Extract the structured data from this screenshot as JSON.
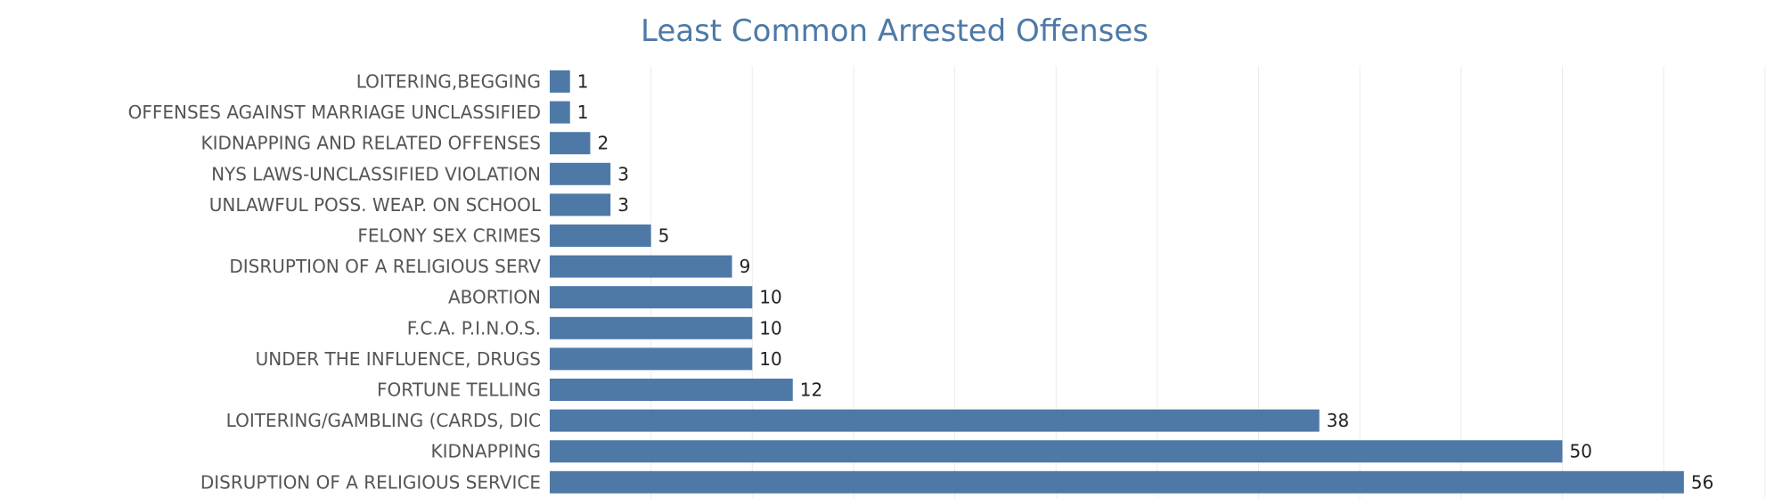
{
  "chart_data": {
    "type": "bar",
    "orientation": "horizontal",
    "title": "Least Common Arrested Offenses",
    "xlabel": "",
    "ylabel": "",
    "xlim": [
      0,
      60
    ],
    "grid": true,
    "bar_color": "#4e79a7",
    "categories": [
      "LOITERING,BEGGING",
      "OFFENSES AGAINST MARRIAGE UNCLASSIFIED",
      "KIDNAPPING AND RELATED OFFENSES",
      "NYS LAWS-UNCLASSIFIED VIOLATION",
      "UNLAWFUL POSS. WEAP. ON SCHOOL",
      "FELONY SEX CRIMES",
      "DISRUPTION OF A RELIGIOUS SERV",
      "ABORTION",
      "F.C.A. P.I.N.O.S.",
      "UNDER THE INFLUENCE, DRUGS",
      "FORTUNE TELLING",
      "LOITERING/GAMBLING (CARDS, DIC",
      "KIDNAPPING",
      "DISRUPTION OF A RELIGIOUS SERVICE"
    ],
    "values": [
      1,
      1,
      2,
      3,
      3,
      5,
      9,
      10,
      10,
      10,
      12,
      38,
      50,
      56
    ]
  }
}
